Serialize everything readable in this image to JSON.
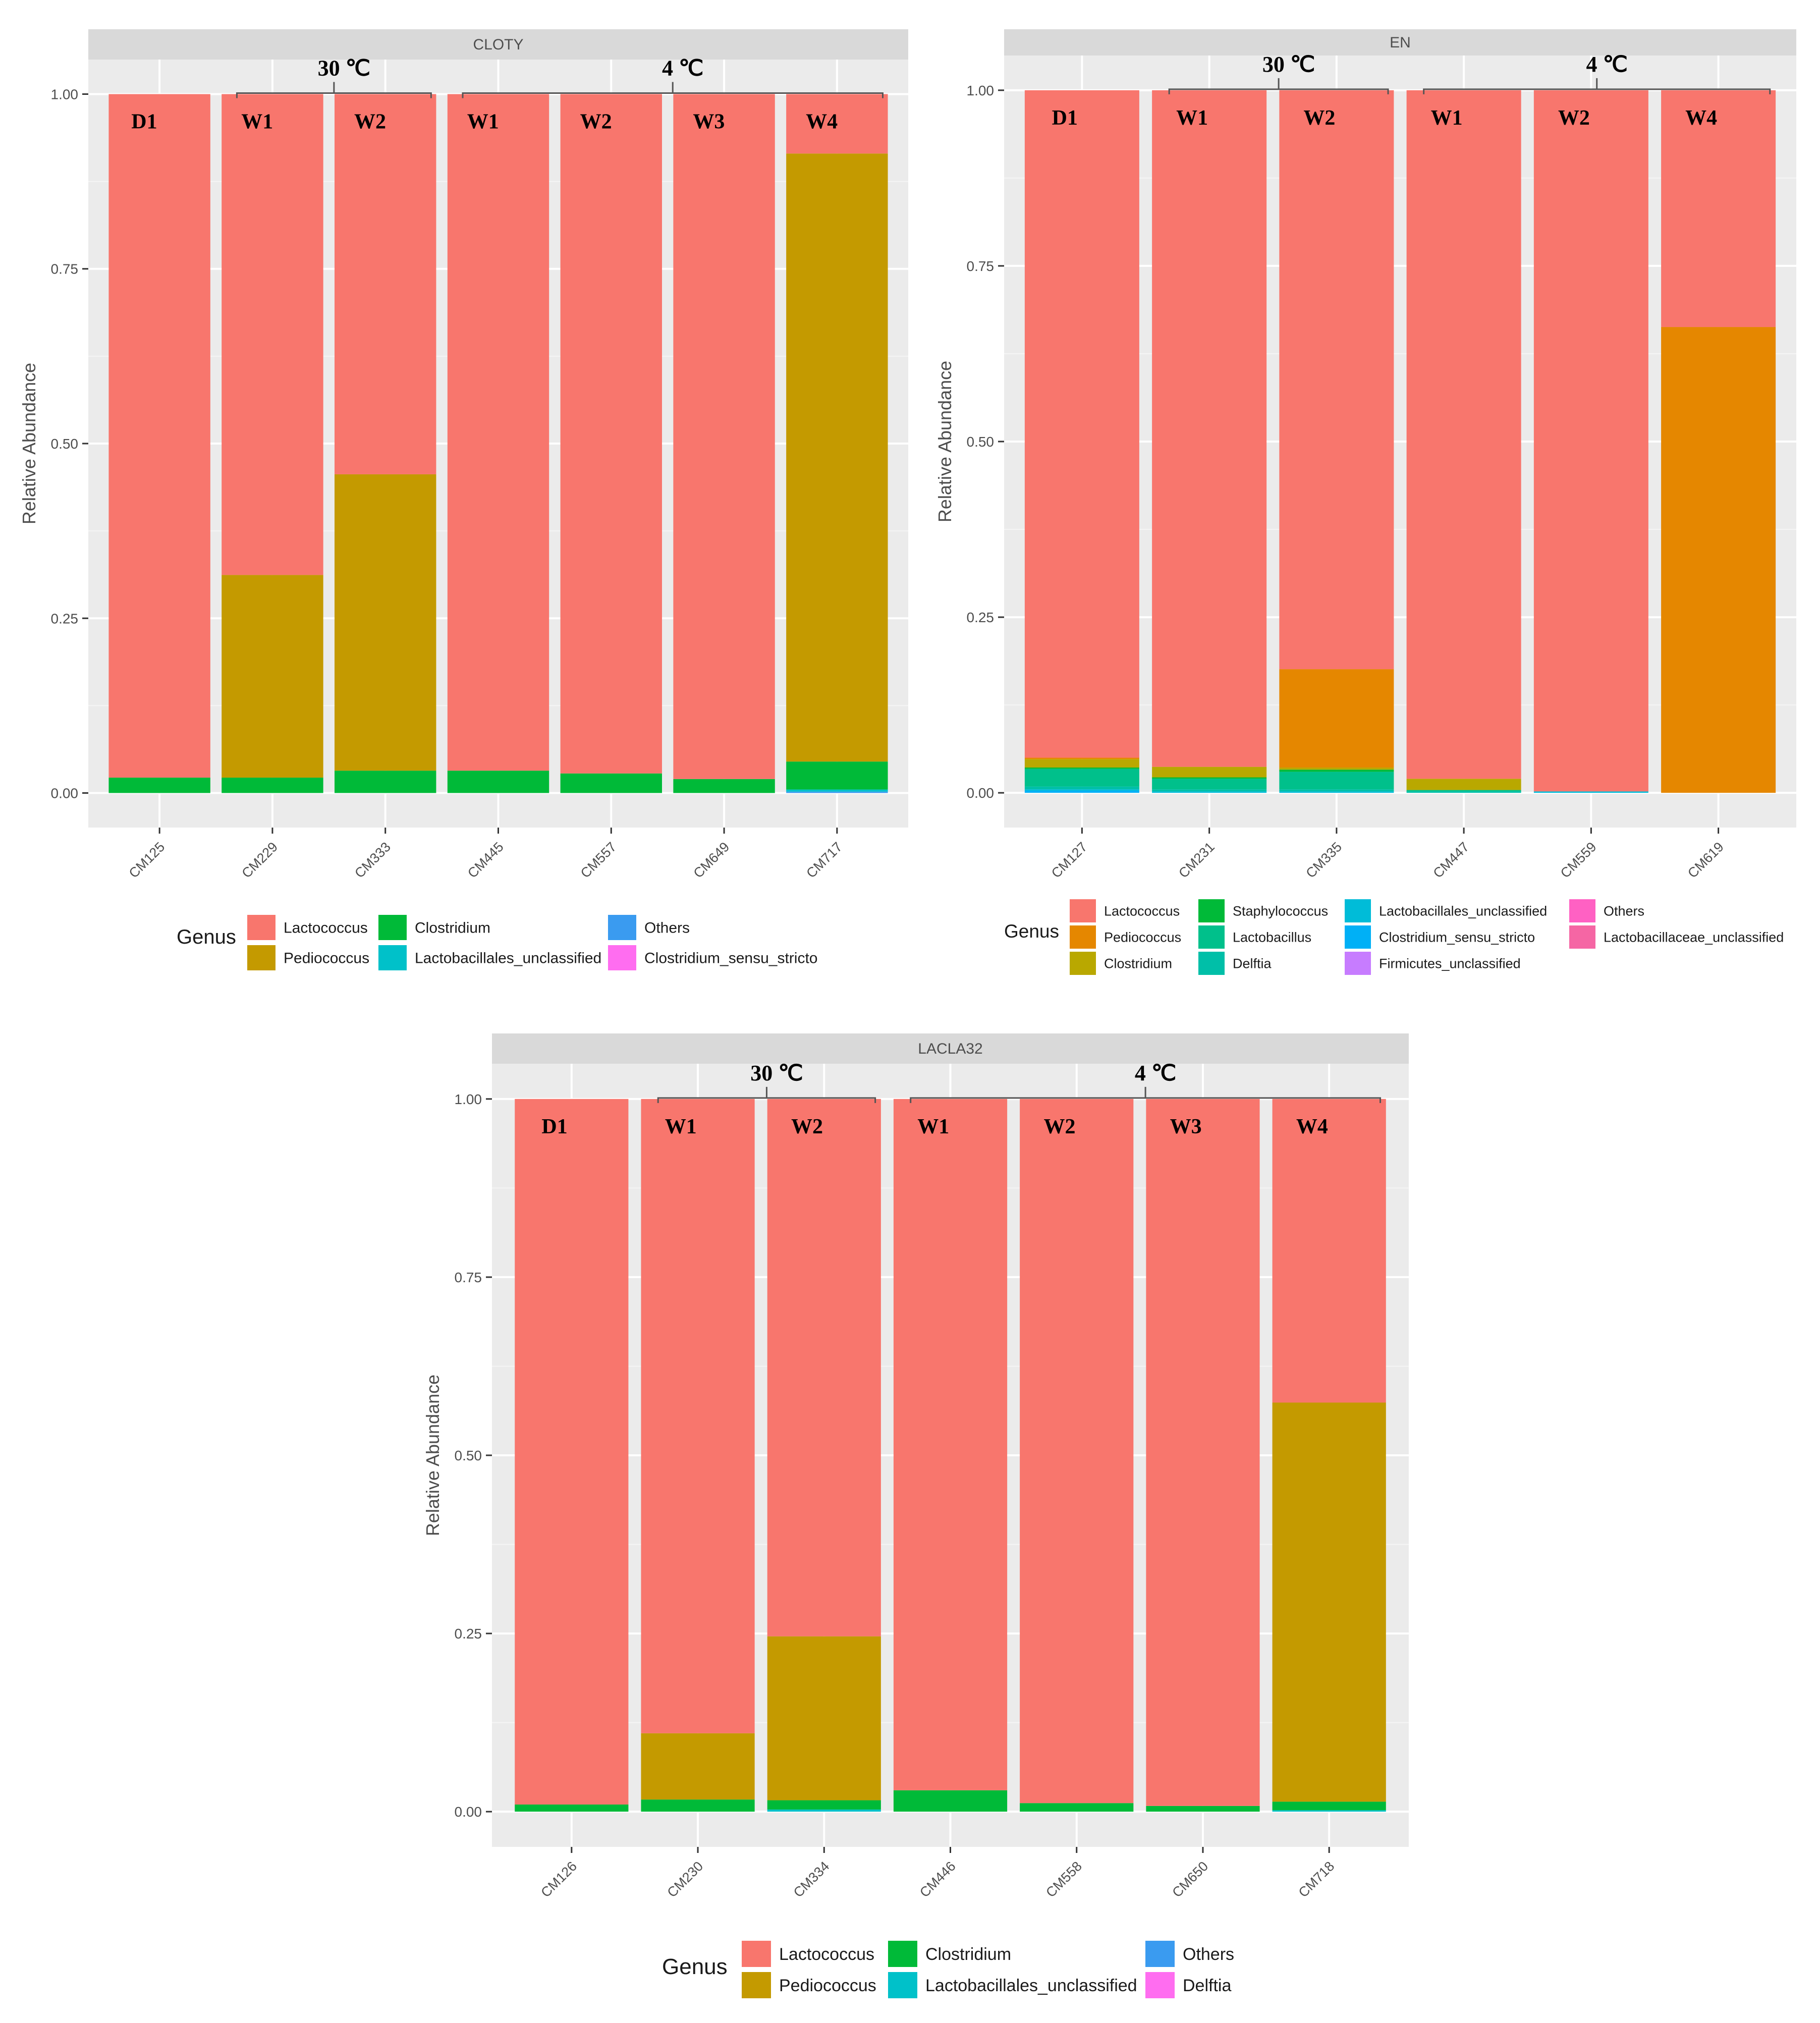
{
  "chart_data": [
    {
      "type": "bar",
      "stacked": true,
      "title": "CLOTY",
      "xlabel": "",
      "ylabel": "Relative Abundance",
      "ylim": [
        0,
        1
      ],
      "yticks": [
        "0.00",
        "0.25",
        "0.50",
        "0.75",
        "1.00"
      ],
      "categories": [
        "CM125",
        "CM229",
        "CM333",
        "CM445",
        "CM557",
        "CM649",
        "CM717"
      ],
      "bar_labels": [
        "D1",
        "W1",
        "W2",
        "W1",
        "W2",
        "W3",
        "W4"
      ],
      "groups": [
        {
          "label": "30 ℃",
          "from": 1,
          "to": 2
        },
        {
          "label": "4 ℃",
          "from": 3,
          "to": 6
        }
      ],
      "legend_title": "Genus",
      "legend": [
        "Lactococcus",
        "Pediococcus",
        "Clostridium",
        "Lactobacillales_unclassified",
        "Others",
        "Clostridium_sensu_stricto"
      ],
      "legend_colors": [
        "#f8766d",
        "#c49a00",
        "#00ba38",
        "#00c1c9",
        "#3a9bf0",
        "#ff6df0"
      ],
      "series": [
        {
          "name": "Others",
          "color": "#3a9bf0",
          "values": [
            0,
            0,
            0,
            0,
            0,
            0,
            0.002
          ]
        },
        {
          "name": "Clostridium_sensu_stricto",
          "color": "#ff6df0",
          "values": [
            0,
            0,
            0,
            0,
            0,
            0,
            0
          ]
        },
        {
          "name": "Lactobacillales_unclassified",
          "color": "#00c1c9",
          "values": [
            0,
            0,
            0,
            0,
            0,
            0,
            0.003
          ]
        },
        {
          "name": "Clostridium",
          "color": "#00ba38",
          "values": [
            0.022,
            0.022,
            0.032,
            0.032,
            0.028,
            0.02,
            0.04
          ]
        },
        {
          "name": "Pediococcus",
          "color": "#c49a00",
          "values": [
            0,
            0.29,
            0.424,
            0,
            0,
            0,
            0.87
          ]
        },
        {
          "name": "Lactococcus",
          "color": "#f8766d",
          "values": [
            0.978,
            0.688,
            0.544,
            0.968,
            0.972,
            0.98,
            0.085
          ]
        }
      ]
    },
    {
      "type": "bar",
      "stacked": true,
      "title": "EN",
      "xlabel": "",
      "ylabel": "Relative Abundance",
      "ylim": [
        0,
        1
      ],
      "yticks": [
        "0.00",
        "0.25",
        "0.50",
        "0.75",
        "1.00"
      ],
      "categories": [
        "CM127",
        "CM231",
        "CM335",
        "CM447",
        "CM559",
        "CM619"
      ],
      "bar_labels": [
        "D1",
        "W1",
        "W2",
        "W1",
        "W2",
        "W4"
      ],
      "groups": [
        {
          "label": "30 ℃",
          "from": 1,
          "to": 2
        },
        {
          "label": "4 ℃",
          "from": 3,
          "to": 5
        }
      ],
      "legend_title": "Genus",
      "legend": [
        "Lactococcus",
        "Pediococcus",
        "Clostridium",
        "Staphylococcus",
        "Lactobacillus",
        "Delftia",
        "Lactobacillales_unclassified",
        "Clostridium_sensu_stricto",
        "Firmicutes_unclassified",
        "Others",
        "Lactobacillaceae_unclassified"
      ],
      "legend_colors": [
        "#f8766d",
        "#e58700",
        "#b9a800",
        "#00ba38",
        "#00c08b",
        "#00bfa8",
        "#00bcd8",
        "#00b0f6",
        "#c77cff",
        "#ff61c3",
        "#f566a4"
      ],
      "series": [
        {
          "name": "Others",
          "color": "#ff61c3",
          "values": [
            0,
            0,
            0,
            0,
            0,
            0
          ]
        },
        {
          "name": "Lactobacillaceae_unclassified",
          "color": "#f566a4",
          "values": [
            0,
            0,
            0,
            0,
            0,
            0
          ]
        },
        {
          "name": "Firmicutes_unclassified",
          "color": "#c77cff",
          "values": [
            0,
            0,
            0,
            0,
            0,
            0
          ]
        },
        {
          "name": "Clostridium_sensu_stricto",
          "color": "#00b0f6",
          "values": [
            0.003,
            0,
            0,
            0,
            0,
            0
          ]
        },
        {
          "name": "Lactobacillales_unclassified",
          "color": "#00bcd8",
          "values": [
            0.002,
            0.002,
            0.002,
            0,
            0.002,
            0
          ]
        },
        {
          "name": "Delftia",
          "color": "#00bfa8",
          "values": [
            0.004,
            0.003,
            0.003,
            0.002,
            0,
            0
          ]
        },
        {
          "name": "Lactobacillus",
          "color": "#00c08b",
          "values": [
            0.025,
            0.015,
            0.025,
            0.002,
            0,
            0
          ]
        },
        {
          "name": "Staphylococcus",
          "color": "#00ba38",
          "values": [
            0.002,
            0.002,
            0.003,
            0,
            0,
            0
          ]
        },
        {
          "name": "Clostridium",
          "color": "#b9a800",
          "values": [
            0.012,
            0.015,
            0.003,
            0.016,
            0,
            0
          ]
        },
        {
          "name": "Pediococcus",
          "color": "#e58700",
          "values": [
            0.002,
            0,
            0.14,
            0,
            0,
            0.663
          ]
        },
        {
          "name": "Lactococcus",
          "color": "#f8766d",
          "values": [
            0.95,
            0.963,
            0.824,
            0.98,
            0.998,
            0.337
          ]
        }
      ]
    },
    {
      "type": "bar",
      "stacked": true,
      "title": "LACLA32",
      "xlabel": "",
      "ylabel": "Relative Abundance",
      "ylim": [
        0,
        1
      ],
      "yticks": [
        "0.00",
        "0.25",
        "0.50",
        "0.75",
        "1.00"
      ],
      "categories": [
        "CM126",
        "CM230",
        "CM334",
        "CM446",
        "CM558",
        "CM650",
        "CM718"
      ],
      "bar_labels": [
        "D1",
        "W1",
        "W2",
        "W1",
        "W2",
        "W3",
        "W4"
      ],
      "groups": [
        {
          "label": "30 ℃",
          "from": 1,
          "to": 2
        },
        {
          "label": "4 ℃",
          "from": 3,
          "to": 6
        }
      ],
      "legend_title": "Genus",
      "legend": [
        "Lactococcus",
        "Pediococcus",
        "Clostridium",
        "Lactobacillales_unclassified",
        "Others",
        "Delftia"
      ],
      "legend_colors": [
        "#f8766d",
        "#c49a00",
        "#00ba38",
        "#00c1c9",
        "#3a9bf0",
        "#ff6df0"
      ],
      "series": [
        {
          "name": "Others",
          "color": "#3a9bf0",
          "values": [
            0,
            0,
            0,
            0,
            0,
            0,
            0
          ]
        },
        {
          "name": "Delftia",
          "color": "#ff6df0",
          "values": [
            0,
            0,
            0,
            0,
            0,
            0,
            0
          ]
        },
        {
          "name": "Lactobacillales_unclassified",
          "color": "#00c1c9",
          "values": [
            0,
            0,
            0.003,
            0,
            0,
            0,
            0.002
          ]
        },
        {
          "name": "Clostridium",
          "color": "#00ba38",
          "values": [
            0.01,
            0.017,
            0.013,
            0.03,
            0.012,
            0.008,
            0.012
          ]
        },
        {
          "name": "Pediococcus",
          "color": "#c49a00",
          "values": [
            0,
            0.093,
            0.23,
            0,
            0,
            0,
            0.56
          ]
        },
        {
          "name": "Lactococcus",
          "color": "#f8766d",
          "values": [
            0.99,
            0.89,
            0.754,
            0.97,
            0.988,
            0.992,
            0.426
          ]
        }
      ]
    }
  ]
}
